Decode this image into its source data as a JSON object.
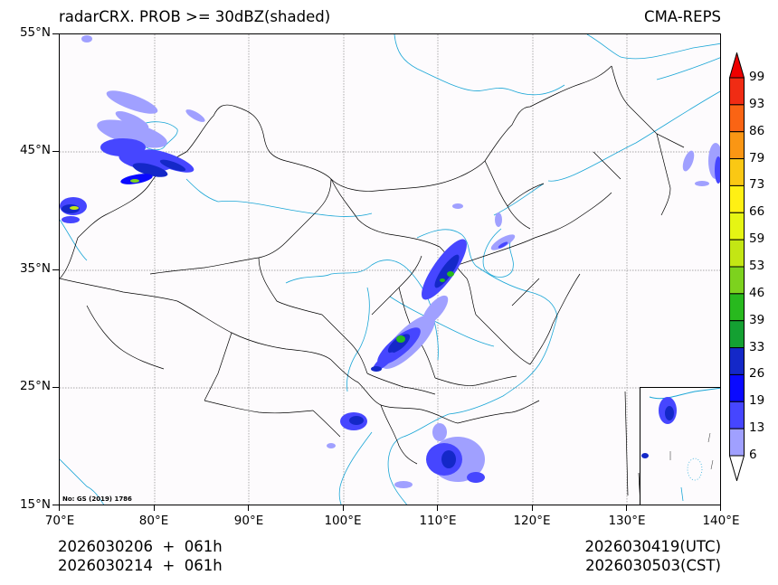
{
  "header": {
    "title_left": "radarCRX. PROB >= 30dBZ(shaded)",
    "title_right": "CMA-REPS"
  },
  "map": {
    "lon_range": [
      70,
      140
    ],
    "lat_range": [
      15,
      55
    ],
    "lat_labels": [
      "55°N",
      "45°N",
      "35°N",
      "25°N",
      "15°N"
    ],
    "lon_labels": [
      "70°E",
      "80°E",
      "90°E",
      "100°E",
      "110°E",
      "120°E",
      "130°E",
      "140°E"
    ],
    "credit": "No: GS (2019) 1786",
    "colors": {
      "border": "#000000",
      "river_coast": "#1aa6d6",
      "gridline": "#8a8a8a",
      "background": "#fdfbfd"
    }
  },
  "colorbar": {
    "levels": [
      "99",
      "93",
      "86",
      "79",
      "73",
      "66",
      "59",
      "53",
      "46",
      "39",
      "33",
      "26",
      "19",
      "13",
      "6"
    ],
    "colors": [
      "#f02c14",
      "#fa6414",
      "#fa9614",
      "#fac814",
      "#fff014",
      "#e6f514",
      "#c3e614",
      "#7dd21e",
      "#28b91e",
      "#14a032",
      "#1428c8",
      "#0a0aff",
      "#4646ff",
      "#a0a0ff"
    ],
    "over_color": "#ee0000",
    "under_color": "#ffffff"
  },
  "footer": {
    "init_utc": "2026030206  +  061h",
    "init_cst": "2026030214  +  061h",
    "valid_utc": "2026030419(UTC)",
    "valid_cst": "2026030503(CST)"
  }
}
